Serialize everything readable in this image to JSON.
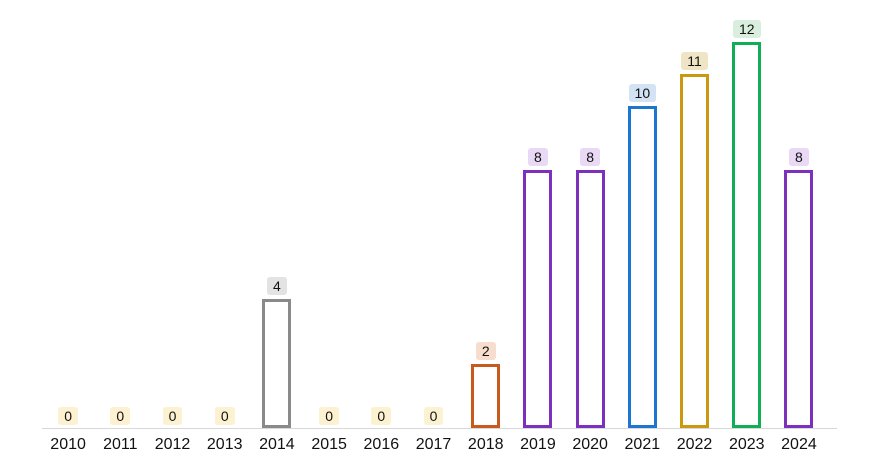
{
  "chart_data": {
    "type": "bar",
    "title": "",
    "xlabel": "",
    "ylabel": "",
    "categories": [
      "2010",
      "2011",
      "2012",
      "2013",
      "2014",
      "2015",
      "2016",
      "2017",
      "2018",
      "2019",
      "2020",
      "2021",
      "2022",
      "2023",
      "2024"
    ],
    "values": [
      0,
      0,
      0,
      0,
      4,
      0,
      0,
      0,
      2,
      8,
      8,
      10,
      11,
      12,
      8
    ],
    "bar_colors": [
      null,
      null,
      null,
      null,
      "#8a8a8a",
      null,
      null,
      null,
      "#c65b1d",
      "#7d2fbe",
      "#7d2fbe",
      "#1c75cf",
      "#cb990f",
      "#10af57",
      "#7d2fbe"
    ],
    "label_backgrounds": [
      "#fcf2d2",
      "#fcf2d2",
      "#fcf2d2",
      "#fcf2d2",
      "#e3e3e3",
      "#fcf2d2",
      "#fcf2d2",
      "#fcf2d2",
      "#f6ddcd",
      "#e9d9f4",
      "#e9d9f4",
      "#d3e3f3",
      "#efe5c5",
      "#d9eedd",
      "#e9d9f4"
    ],
    "ylim": [
      0,
      12.5
    ],
    "grid": false,
    "legend": false,
    "bar_style": "outlined",
    "data_labels_shown": true,
    "axis_line_color": "#d8d8d8",
    "text_color": "#111111",
    "background_color": "#ffffff"
  }
}
